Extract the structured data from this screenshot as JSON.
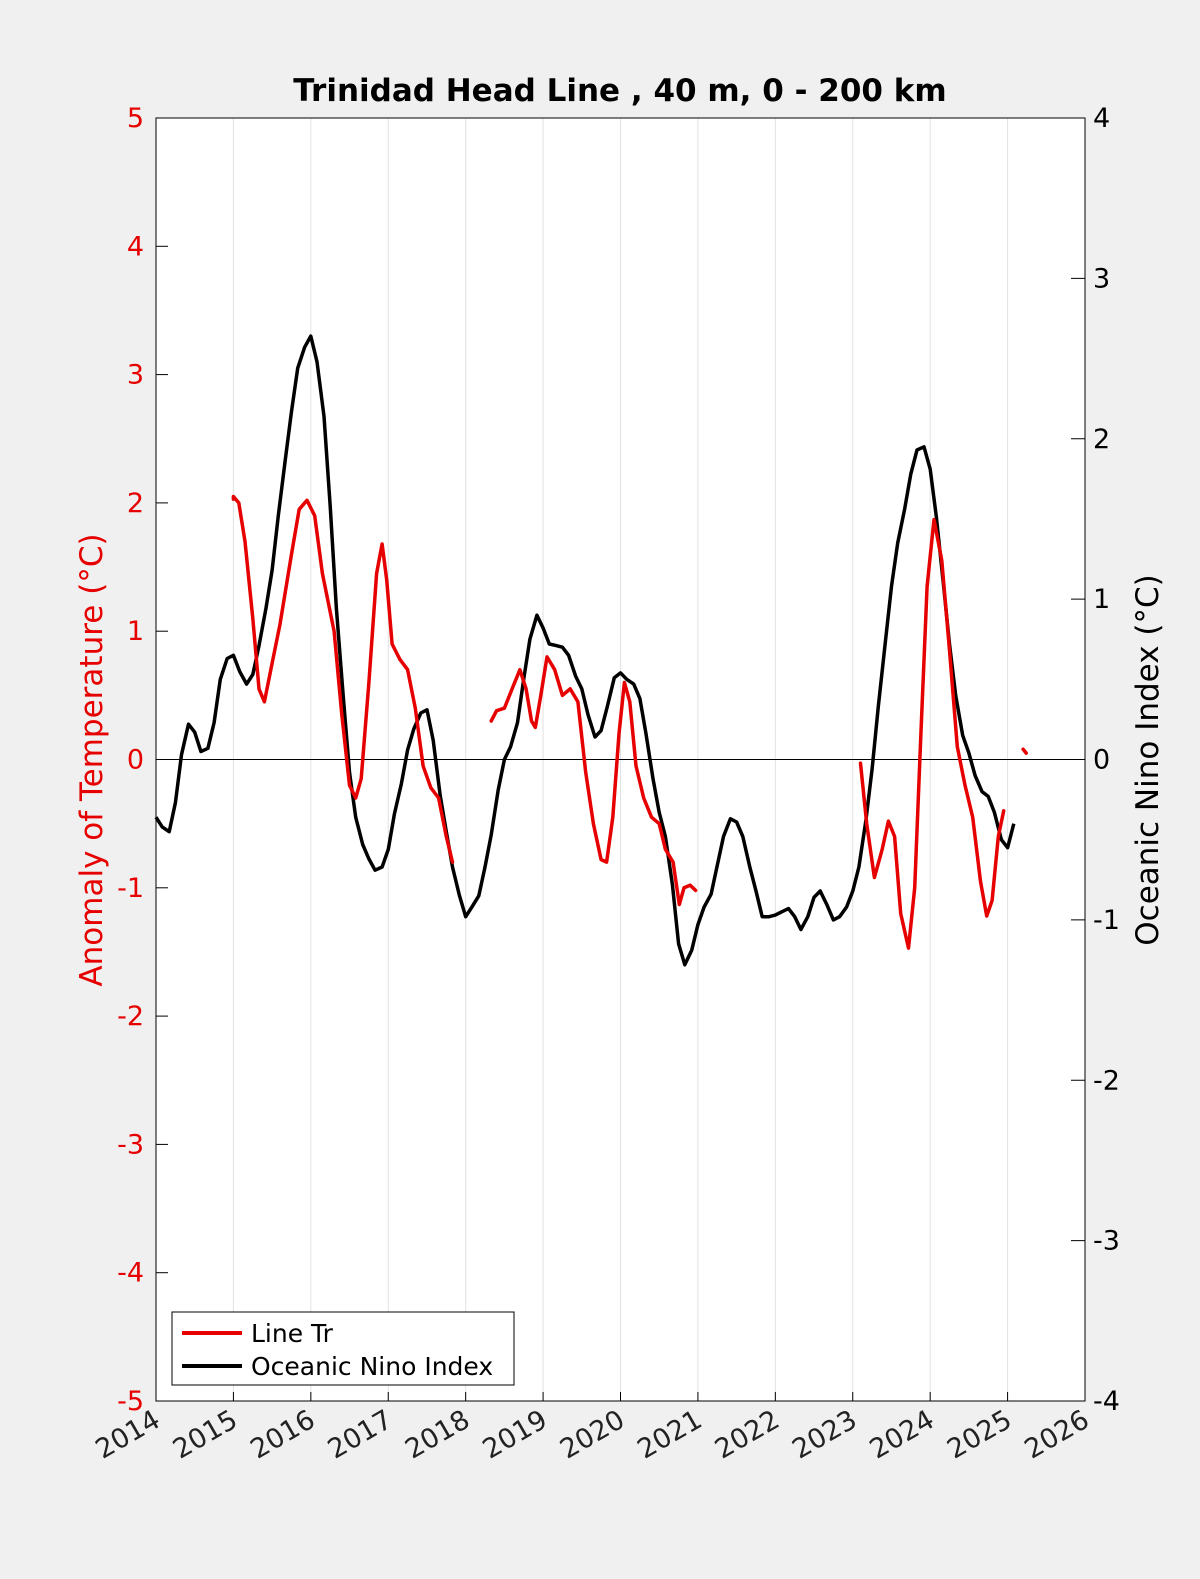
{
  "chart_data": {
    "type": "line",
    "title": "Trinidad Head Line , 40 m, 0 - 200 km",
    "xlabel": "",
    "ylabel_left": "Anomaly of Temperature (°C)",
    "ylabel_right": "Oceanic Nino Index (°C)",
    "xlim": [
      2014,
      2026
    ],
    "ylim_left": [
      -5,
      5
    ],
    "ylim_right": [
      -4,
      4
    ],
    "x_ticks": [
      "2014",
      "2015",
      "2016",
      "2017",
      "2018",
      "2019",
      "2020",
      "2021",
      "2022",
      "2023",
      "2024",
      "2025",
      "2026"
    ],
    "y_left_ticks": [
      "5",
      "4",
      "3",
      "2",
      "1",
      "0",
      "-1",
      "-2",
      "-3",
      "-4",
      "-5"
    ],
    "y_right_ticks": [
      "4",
      "3",
      "2",
      "1",
      "0",
      "-1",
      "-2",
      "-3",
      "-4"
    ],
    "grid": "vertical",
    "legend_position": "bottom-left",
    "colors": {
      "line_tr": "#e60000",
      "oni": "#000000",
      "left_axis": "#e60000",
      "right_axis": "#000000"
    },
    "series": [
      {
        "name": "Line Tr",
        "axis": "left",
        "segments": [
          [
            [
              2015.0,
              2.03
            ],
            [
              2015.0,
              2.05
            ],
            [
              2015.07,
              2.0
            ],
            [
              2015.15,
              1.7
            ],
            [
              2015.25,
              1.1
            ],
            [
              2015.33,
              0.55
            ],
            [
              2015.4,
              0.45
            ],
            [
              2015.5,
              0.75
            ],
            [
              2015.6,
              1.05
            ],
            [
              2015.75,
              1.6
            ],
            [
              2015.85,
              1.95
            ],
            [
              2015.95,
              2.02
            ],
            [
              2016.05,
              1.9
            ],
            [
              2016.15,
              1.45
            ],
            [
              2016.3,
              1.0
            ],
            [
              2016.4,
              0.35
            ],
            [
              2016.5,
              -0.2
            ],
            [
              2016.58,
              -0.3
            ],
            [
              2016.65,
              -0.15
            ],
            [
              2016.75,
              0.6
            ],
            [
              2016.85,
              1.45
            ],
            [
              2016.92,
              1.68
            ],
            [
              2016.98,
              1.4
            ],
            [
              2017.05,
              0.9
            ],
            [
              2017.15,
              0.78
            ],
            [
              2017.25,
              0.7
            ],
            [
              2017.35,
              0.4
            ],
            [
              2017.45,
              -0.05
            ],
            [
              2017.55,
              -0.22
            ],
            [
              2017.65,
              -0.3
            ],
            [
              2017.75,
              -0.6
            ],
            [
              2017.83,
              -0.8
            ]
          ],
          [
            [
              2018.33,
              0.3
            ],
            [
              2018.4,
              0.38
            ],
            [
              2018.5,
              0.4
            ],
            [
              2018.6,
              0.55
            ],
            [
              2018.7,
              0.7
            ],
            [
              2018.78,
              0.55
            ],
            [
              2018.85,
              0.3
            ],
            [
              2018.9,
              0.25
            ],
            [
              2018.97,
              0.5
            ],
            [
              2019.05,
              0.8
            ],
            [
              2019.15,
              0.7
            ],
            [
              2019.25,
              0.5
            ],
            [
              2019.35,
              0.55
            ],
            [
              2019.45,
              0.45
            ],
            [
              2019.55,
              -0.1
            ],
            [
              2019.65,
              -0.5
            ],
            [
              2019.75,
              -0.78
            ],
            [
              2019.82,
              -0.8
            ],
            [
              2019.9,
              -0.45
            ],
            [
              2019.98,
              0.2
            ],
            [
              2020.05,
              0.6
            ],
            [
              2020.12,
              0.45
            ],
            [
              2020.2,
              -0.05
            ],
            [
              2020.3,
              -0.3
            ],
            [
              2020.4,
              -0.45
            ],
            [
              2020.5,
              -0.5
            ],
            [
              2020.58,
              -0.7
            ],
            [
              2020.68,
              -0.8
            ],
            [
              2020.76,
              -1.13
            ],
            [
              2020.82,
              -1.0
            ],
            [
              2020.9,
              -0.98
            ],
            [
              2020.97,
              -1.02
            ]
          ],
          [
            [
              2023.1,
              -0.03
            ],
            [
              2023.18,
              -0.5
            ],
            [
              2023.28,
              -0.92
            ],
            [
              2023.38,
              -0.7
            ],
            [
              2023.46,
              -0.48
            ],
            [
              2023.54,
              -0.6
            ],
            [
              2023.62,
              -1.2
            ],
            [
              2023.72,
              -1.47
            ],
            [
              2023.8,
              -1.0
            ],
            [
              2023.88,
              0.2
            ],
            [
              2023.96,
              1.35
            ],
            [
              2024.05,
              1.87
            ],
            [
              2024.15,
              1.55
            ],
            [
              2024.25,
              0.85
            ],
            [
              2024.35,
              0.1
            ],
            [
              2024.45,
              -0.2
            ],
            [
              2024.55,
              -0.45
            ],
            [
              2024.65,
              -0.95
            ],
            [
              2024.73,
              -1.22
            ],
            [
              2024.8,
              -1.1
            ],
            [
              2024.88,
              -0.6
            ],
            [
              2024.95,
              -0.4
            ]
          ],
          [
            [
              2025.2,
              0.08
            ],
            [
              2025.24,
              0.05
            ]
          ]
        ]
      },
      {
        "name": "Oceanic Nino Index",
        "axis": "right",
        "points": [
          [
            2014.0,
            -0.36
          ],
          [
            2014.08,
            -0.42
          ],
          [
            2014.17,
            -0.45
          ],
          [
            2014.25,
            -0.27
          ],
          [
            2014.33,
            0.03
          ],
          [
            2014.42,
            0.22
          ],
          [
            2014.5,
            0.17
          ],
          [
            2014.58,
            0.05
          ],
          [
            2014.67,
            0.07
          ],
          [
            2014.75,
            0.23
          ],
          [
            2014.83,
            0.5
          ],
          [
            2014.92,
            0.63
          ],
          [
            2015.0,
            0.65
          ],
          [
            2015.08,
            0.55
          ],
          [
            2015.17,
            0.47
          ],
          [
            2015.25,
            0.53
          ],
          [
            2015.33,
            0.71
          ],
          [
            2015.42,
            0.94
          ],
          [
            2015.5,
            1.18
          ],
          [
            2015.58,
            1.52
          ],
          [
            2015.67,
            1.87
          ],
          [
            2015.75,
            2.17
          ],
          [
            2015.83,
            2.44
          ],
          [
            2015.92,
            2.57
          ],
          [
            2016.0,
            2.64
          ],
          [
            2016.08,
            2.48
          ],
          [
            2016.17,
            2.14
          ],
          [
            2016.25,
            1.58
          ],
          [
            2016.33,
            0.94
          ],
          [
            2016.42,
            0.39
          ],
          [
            2016.5,
            -0.08
          ],
          [
            2016.58,
            -0.36
          ],
          [
            2016.67,
            -0.53
          ],
          [
            2016.75,
            -0.62
          ],
          [
            2016.83,
            -0.69
          ],
          [
            2016.92,
            -0.67
          ],
          [
            2017.0,
            -0.56
          ],
          [
            2017.08,
            -0.34
          ],
          [
            2017.17,
            -0.15
          ],
          [
            2017.25,
            0.06
          ],
          [
            2017.33,
            0.19
          ],
          [
            2017.42,
            0.29
          ],
          [
            2017.5,
            0.31
          ],
          [
            2017.58,
            0.12
          ],
          [
            2017.67,
            -0.22
          ],
          [
            2017.75,
            -0.45
          ],
          [
            2017.83,
            -0.67
          ],
          [
            2017.92,
            -0.85
          ],
          [
            2018.0,
            -0.98
          ],
          [
            2018.08,
            -0.92
          ],
          [
            2018.17,
            -0.85
          ],
          [
            2018.25,
            -0.67
          ],
          [
            2018.33,
            -0.47
          ],
          [
            2018.42,
            -0.19
          ],
          [
            2018.5,
            0.0
          ],
          [
            2018.58,
            0.08
          ],
          [
            2018.67,
            0.23
          ],
          [
            2018.75,
            0.5
          ],
          [
            2018.83,
            0.75
          ],
          [
            2018.92,
            0.9
          ],
          [
            2019.0,
            0.82
          ],
          [
            2019.08,
            0.72
          ],
          [
            2019.17,
            0.71
          ],
          [
            2019.25,
            0.7
          ],
          [
            2019.33,
            0.65
          ],
          [
            2019.42,
            0.52
          ],
          [
            2019.5,
            0.44
          ],
          [
            2019.58,
            0.28
          ],
          [
            2019.67,
            0.14
          ],
          [
            2019.75,
            0.18
          ],
          [
            2019.83,
            0.33
          ],
          [
            2019.92,
            0.51
          ],
          [
            2020.0,
            0.54
          ],
          [
            2020.08,
            0.5
          ],
          [
            2020.17,
            0.47
          ],
          [
            2020.25,
            0.38
          ],
          [
            2020.33,
            0.16
          ],
          [
            2020.42,
            -0.12
          ],
          [
            2020.5,
            -0.33
          ],
          [
            2020.58,
            -0.48
          ],
          [
            2020.67,
            -0.78
          ],
          [
            2020.75,
            -1.15
          ],
          [
            2020.83,
            -1.28
          ],
          [
            2020.92,
            -1.19
          ],
          [
            2021.0,
            -1.03
          ],
          [
            2021.08,
            -0.92
          ],
          [
            2021.17,
            -0.84
          ],
          [
            2021.25,
            -0.66
          ],
          [
            2021.33,
            -0.48
          ],
          [
            2021.42,
            -0.37
          ],
          [
            2021.5,
            -0.39
          ],
          [
            2021.58,
            -0.48
          ],
          [
            2021.67,
            -0.67
          ],
          [
            2021.75,
            -0.82
          ],
          [
            2021.83,
            -0.98
          ],
          [
            2021.92,
            -0.98
          ],
          [
            2022.0,
            -0.97
          ],
          [
            2022.08,
            -0.95
          ],
          [
            2022.17,
            -0.93
          ],
          [
            2022.25,
            -0.98
          ],
          [
            2022.33,
            -1.06
          ],
          [
            2022.42,
            -0.98
          ],
          [
            2022.5,
            -0.86
          ],
          [
            2022.58,
            -0.82
          ],
          [
            2022.67,
            -0.91
          ],
          [
            2022.75,
            -1.0
          ],
          [
            2022.83,
            -0.98
          ],
          [
            2022.92,
            -0.92
          ],
          [
            2023.0,
            -0.82
          ],
          [
            2023.08,
            -0.67
          ],
          [
            2023.17,
            -0.38
          ],
          [
            2023.25,
            -0.06
          ],
          [
            2023.33,
            0.33
          ],
          [
            2023.42,
            0.73
          ],
          [
            2023.5,
            1.08
          ],
          [
            2023.58,
            1.35
          ],
          [
            2023.67,
            1.56
          ],
          [
            2023.75,
            1.78
          ],
          [
            2023.83,
            1.93
          ],
          [
            2023.92,
            1.95
          ],
          [
            2024.0,
            1.81
          ],
          [
            2024.08,
            1.51
          ],
          [
            2024.17,
            1.1
          ],
          [
            2024.25,
            0.72
          ],
          [
            2024.33,
            0.4
          ],
          [
            2024.42,
            0.15
          ],
          [
            2024.5,
            0.04
          ],
          [
            2024.58,
            -0.1
          ],
          [
            2024.67,
            -0.2
          ],
          [
            2024.75,
            -0.23
          ],
          [
            2024.83,
            -0.33
          ],
          [
            2024.92,
            -0.5
          ],
          [
            2025.0,
            -0.55
          ],
          [
            2025.08,
            -0.4
          ]
        ]
      }
    ]
  }
}
